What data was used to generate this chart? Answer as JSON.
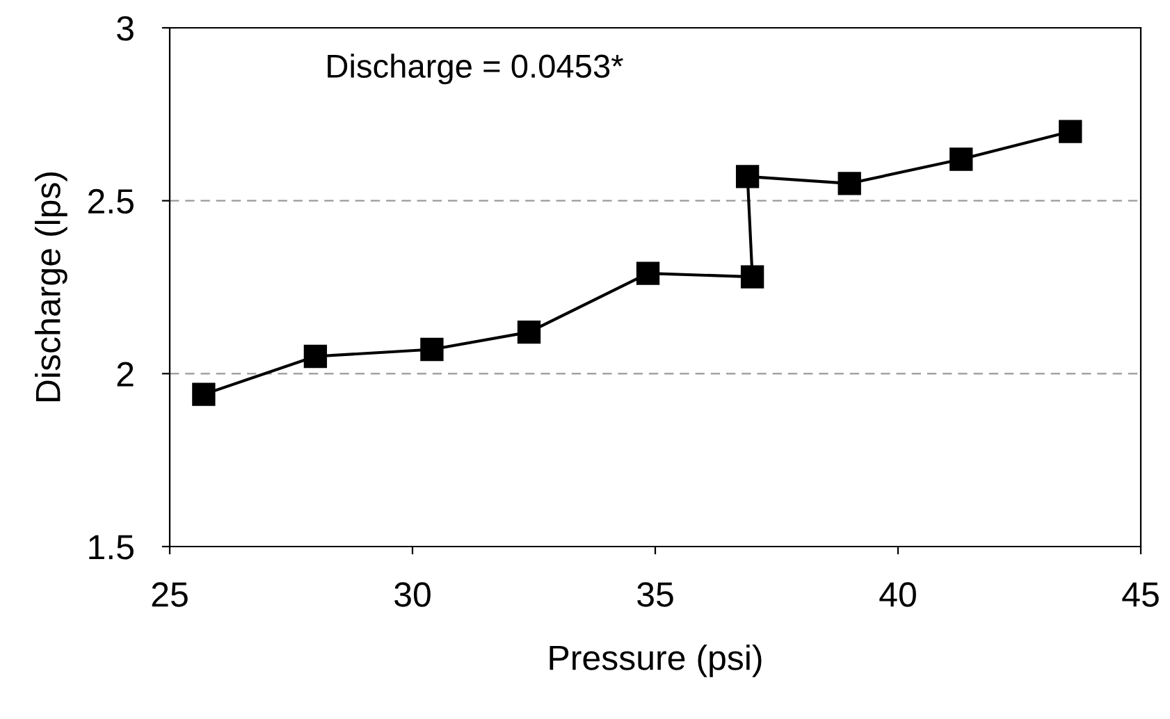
{
  "chart_data": {
    "type": "line",
    "xlabel": "Pressure (psi)",
    "ylabel": "Discharge (lps)",
    "annotations": [
      "Discharge = 0.0453*"
    ],
    "series": [
      {
        "color": "#000000",
        "x": [
          25.7,
          28.0,
          30.4,
          32.4,
          34.85,
          37.0,
          36.9,
          39.0,
          41.3,
          43.55
        ],
        "values": [
          1.94,
          2.05,
          2.07,
          2.12,
          2.29,
          2.28,
          2.57,
          2.55,
          2.62,
          2.7
        ]
      }
    ],
    "xlim": [
      25,
      45
    ],
    "xticks": [
      25,
      30,
      35,
      40,
      45
    ],
    "ylim": [
      1.5,
      3
    ],
    "yticks": [
      1.5,
      2,
      2.5,
      3
    ],
    "grid": "y",
    "marker": "square",
    "line_style": "solid"
  }
}
